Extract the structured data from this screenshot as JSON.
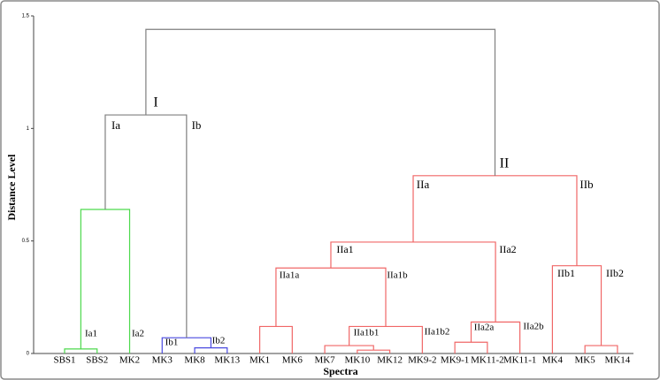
{
  "chart_data": {
    "type": "dendrogram",
    "ylabel": "Distance Level",
    "xlabel": "Spectra",
    "ylim": [
      0,
      1.5
    ],
    "yticks": [
      0,
      0.5,
      1,
      1.5
    ],
    "leaves": [
      "SBS1",
      "SBS2",
      "MK2",
      "MK3",
      "MK8",
      "MK13",
      "MK1",
      "MK6",
      "MK7",
      "MK10",
      "MK12",
      "MK9-2",
      "MK9-1",
      "MK11-2",
      "MK11-1",
      "MK4",
      "MK5",
      "MK14"
    ],
    "merges": [
      {
        "children": [
          0,
          1
        ],
        "height": 0.02,
        "color": "#4cd94c"
      },
      {
        "children": [
          18,
          2
        ],
        "height": 0.64,
        "color": "#4cd94c"
      },
      {
        "children": [
          4,
          5
        ],
        "height": 0.025,
        "color": "#4a4ae0"
      },
      {
        "children": [
          3,
          20
        ],
        "height": 0.07,
        "color": "#4a4ae0"
      },
      {
        "children": [
          19,
          21
        ],
        "height": 1.06,
        "color": "#7f7f7f"
      },
      {
        "children": [
          6,
          7
        ],
        "height": 0.12,
        "color": "#f06767"
      },
      {
        "children": [
          9,
          10
        ],
        "height": 0.015,
        "color": "#f06767"
      },
      {
        "children": [
          8,
          24
        ],
        "height": 0.035,
        "color": "#f06767"
      },
      {
        "children": [
          25,
          11
        ],
        "height": 0.12,
        "color": "#f06767"
      },
      {
        "children": [
          23,
          26
        ],
        "height": 0.38,
        "color": "#f06767"
      },
      {
        "children": [
          12,
          13
        ],
        "height": 0.05,
        "color": "#f06767"
      },
      {
        "children": [
          28,
          14
        ],
        "height": 0.14,
        "color": "#f06767"
      },
      {
        "children": [
          27,
          29
        ],
        "height": 0.495,
        "color": "#f06767"
      },
      {
        "children": [
          16,
          17
        ],
        "height": 0.035,
        "color": "#f06767"
      },
      {
        "children": [
          15,
          31
        ],
        "height": 0.39,
        "color": "#f06767"
      },
      {
        "children": [
          30,
          32
        ],
        "height": 0.79,
        "color": "#f06767"
      },
      {
        "children": [
          22,
          33
        ],
        "height": 1.44,
        "color": "#7f7f7f"
      }
    ],
    "cluster_labels": [
      "I",
      "Ia",
      "Ib",
      "Ia1",
      "Ia2",
      "Ib1",
      "Ib2",
      "II",
      "IIa",
      "IIb",
      "IIa1",
      "IIa2",
      "IIa1a",
      "IIa1b",
      "IIa1b1",
      "IIa1b2",
      "IIa2a",
      "IIa2b",
      "IIb1",
      "IIb2"
    ]
  }
}
